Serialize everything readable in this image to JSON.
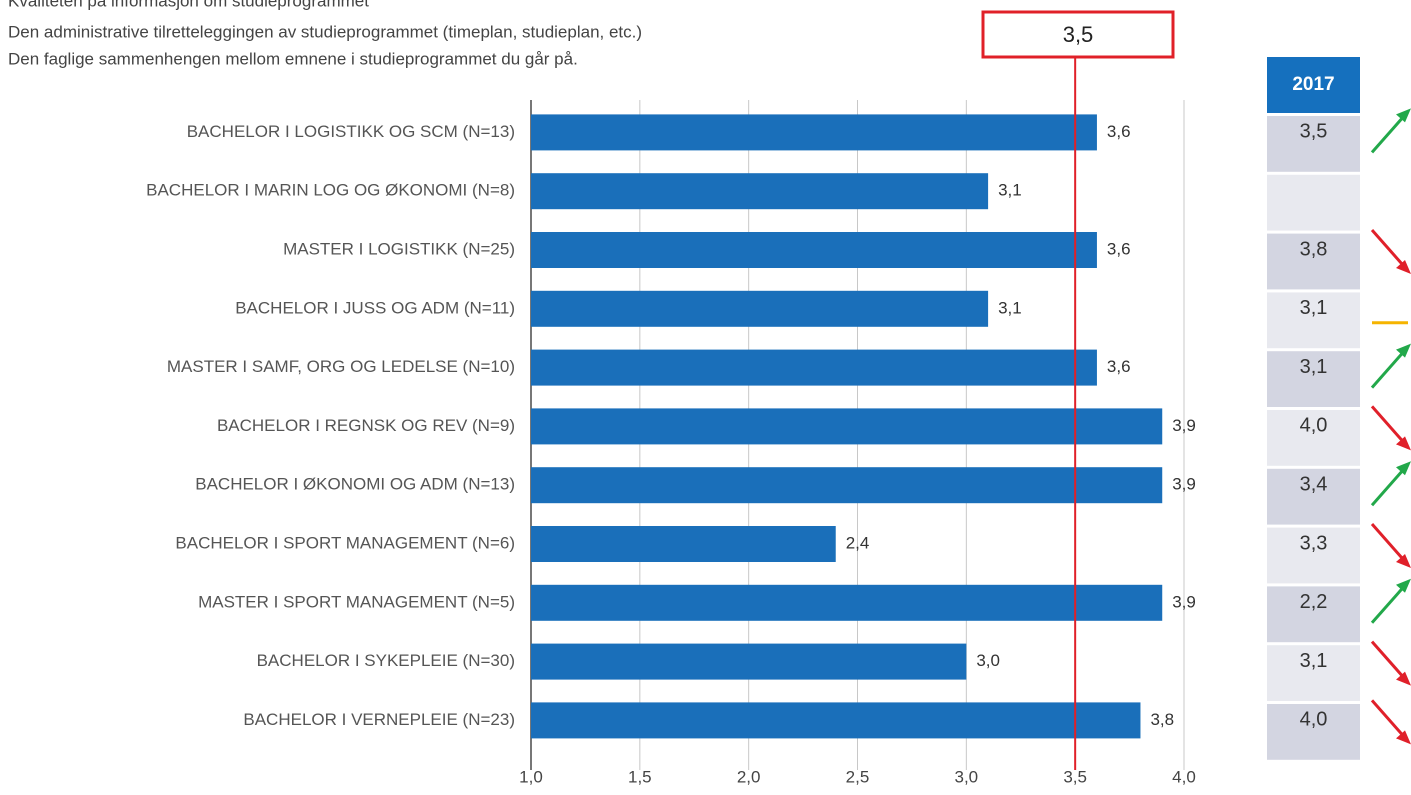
{
  "chart_data": {
    "type": "hbar",
    "subtitle_lines": [
      "Kvaliteten på informasjon om studieprogrammet",
      "Den administrative tilretteleggingen av studieprogrammet (timeplan, studieplan, etc.)",
      "Den faglige sammenhengen mellom emnene i studieprogrammet du går på."
    ],
    "categories": [
      "BACHELOR I LOGISTIKK OG SCM (N=13)",
      "BACHELOR I MARIN LOG OG ØKONOMI (N=8)",
      "MASTER I LOGISTIKK (N=25)",
      "BACHELOR I JUSS OG ADM (N=11)",
      "MASTER I SAMF, ORG OG LEDELSE (N=10)",
      "BACHELOR I REGNSK OG REV (N=9)",
      "BACHELOR I ØKONOMI OG ADM (N=13)",
      "BACHELOR I SPORT MANAGEMENT (N=6)",
      "MASTER I SPORT MANAGEMENT (N=5)",
      "BACHELOR I SYKEPLEIE (N=30)",
      "BACHELOR I VERNEPLEIE (N=23)"
    ],
    "values": [
      3.6,
      3.1,
      3.6,
      3.1,
      3.6,
      3.9,
      3.9,
      2.4,
      3.9,
      3.0,
      3.8
    ],
    "value_labels": [
      "3,6",
      "3,1",
      "3,6",
      "3,1",
      "3,6",
      "3,9",
      "3,9",
      "2,4",
      "3,9",
      "3,0",
      "3,8"
    ],
    "color": "#1a6fba",
    "xlim": [
      1.0,
      4.0
    ],
    "xticks": [
      {
        "value": 1.0,
        "label": "1,0"
      },
      {
        "value": 1.5,
        "label": "1,5"
      },
      {
        "value": 2.0,
        "label": "2,0"
      },
      {
        "value": 2.5,
        "label": "2,5"
      },
      {
        "value": 3.0,
        "label": "3,0"
      },
      {
        "value": 3.5,
        "label": "3,5"
      },
      {
        "value": 4.0,
        "label": "4,0"
      }
    ],
    "grid": true,
    "reference": {
      "value": 3.5,
      "label": "3,5",
      "color": "#e02028"
    },
    "comparison": {
      "header": "2017",
      "values": [
        3.5,
        null,
        3.8,
        3.1,
        3.1,
        4.0,
        3.4,
        3.3,
        2.2,
        3.1,
        4.0
      ],
      "value_labels": [
        "3,5",
        null,
        "3,8",
        "3,1",
        "3,1",
        "4,0",
        "3,4",
        "3,3",
        "2,2",
        "3,1",
        "4,0"
      ],
      "header_color": "#1570be",
      "row_colors": [
        "#d3d5e1",
        "#e8e9ef"
      ],
      "trend_colors": {
        "up": "#22a84a",
        "down": "#e0202a",
        "flat": "#f5b400"
      }
    }
  }
}
